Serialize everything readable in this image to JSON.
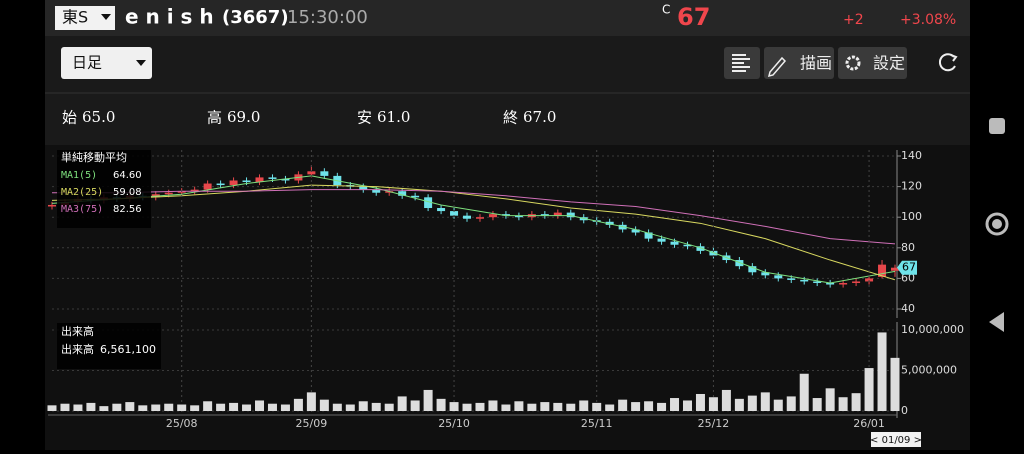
{
  "header": {
    "market": "東S",
    "name": "e n i s h",
    "code": "(3667)",
    "time": "15:30:00",
    "price_flag": "C",
    "price": "67",
    "change": "+2",
    "change_pct": "+3.08%"
  },
  "toolbar": {
    "period": "日足",
    "draw": "描画",
    "settings": "設定"
  },
  "ohlc_summary": [
    {
      "label": "始",
      "value": "65.0"
    },
    {
      "label": "高",
      "value": "69.0"
    },
    {
      "label": "安",
      "value": "61.0"
    },
    {
      "label": "終",
      "value": "67.0"
    }
  ],
  "chart_data": [
    {
      "type": "candlestick",
      "legend_title": "単純移動平均",
      "xlim": [
        0,
        65
      ],
      "ylim": [
        40,
        140
      ],
      "yticks": [
        40,
        60,
        80,
        100,
        120,
        140
      ],
      "up_color": "#e8474b",
      "down_color": "#6fe3ea",
      "last_price_label": "67",
      "ohlc": [
        [
          107,
          110,
          105,
          108
        ],
        [
          108,
          112,
          106,
          110
        ],
        [
          110,
          114,
          108,
          112
        ],
        [
          112,
          114,
          109,
          111
        ],
        [
          111,
          115,
          109,
          113
        ],
        [
          113,
          115,
          110,
          112
        ],
        [
          112,
          116,
          110,
          114
        ],
        [
          114,
          116,
          111,
          113
        ],
        [
          113,
          117,
          111,
          115
        ],
        [
          115,
          118,
          113,
          116
        ],
        [
          116,
          119,
          114,
          117
        ],
        [
          117,
          120,
          115,
          118
        ],
        [
          118,
          124,
          116,
          122
        ],
        [
          122,
          124,
          119,
          121
        ],
        [
          121,
          126,
          119,
          124
        ],
        [
          124,
          126,
          121,
          123
        ],
        [
          123,
          128,
          121,
          126
        ],
        [
          126,
          128,
          123,
          125
        ],
        [
          125,
          127,
          122,
          124
        ],
        [
          124,
          130,
          122,
          128
        ],
        [
          128,
          134,
          126,
          130
        ],
        [
          130,
          132,
          125,
          127
        ],
        [
          127,
          129,
          119,
          121
        ],
        [
          121,
          123,
          118,
          120
        ],
        [
          120,
          122,
          116,
          118
        ],
        [
          118,
          120,
          114,
          116
        ],
        [
          116,
          119,
          114,
          117
        ],
        [
          117,
          119,
          112,
          114
        ],
        [
          114,
          116,
          111,
          113
        ],
        [
          113,
          115,
          104,
          106
        ],
        [
          106,
          108,
          102,
          104
        ],
        [
          104,
          106,
          99,
          101
        ],
        [
          101,
          103,
          97,
          99
        ],
        [
          99,
          102,
          97,
          100
        ],
        [
          100,
          104,
          98,
          102
        ],
        [
          102,
          104,
          99,
          101
        ],
        [
          101,
          103,
          98,
          100
        ],
        [
          100,
          104,
          98,
          102
        ],
        [
          102,
          104,
          99,
          101
        ],
        [
          101,
          105,
          99,
          103
        ],
        [
          103,
          105,
          98,
          100
        ],
        [
          100,
          102,
          96,
          98
        ],
        [
          98,
          100,
          95,
          97
        ],
        [
          97,
          99,
          93,
          95
        ],
        [
          95,
          97,
          90,
          92
        ],
        [
          92,
          94,
          88,
          90
        ],
        [
          90,
          92,
          84,
          86
        ],
        [
          86,
          88,
          82,
          84
        ],
        [
          84,
          86,
          80,
          82
        ],
        [
          82,
          84,
          79,
          81
        ],
        [
          81,
          83,
          76,
          78
        ],
        [
          78,
          80,
          73,
          75
        ],
        [
          75,
          77,
          70,
          72
        ],
        [
          72,
          74,
          66,
          68
        ],
        [
          68,
          70,
          62,
          64
        ],
        [
          64,
          66,
          60,
          62
        ],
        [
          62,
          64,
          58,
          60
        ],
        [
          60,
          62,
          57,
          59
        ],
        [
          59,
          61,
          56,
          58
        ],
        [
          58,
          60,
          55,
          57
        ],
        [
          57,
          59,
          54,
          56
        ],
        [
          56,
          59,
          54,
          57
        ],
        [
          57,
          60,
          55,
          58
        ],
        [
          58,
          62,
          56,
          60
        ],
        [
          61,
          72,
          60,
          69
        ],
        [
          65,
          69,
          61,
          67
        ]
      ],
      "series": [
        {
          "name": "MA1(5)",
          "color": "#7ee07e",
          "current_label": "64.60",
          "x": [
            0,
            5,
            10,
            15,
            20,
            25,
            30,
            35,
            40,
            45,
            50,
            55,
            60,
            65
          ],
          "values": [
            109,
            112,
            115,
            122,
            127,
            119,
            108,
            101,
            101,
            92,
            80,
            64,
            57,
            64.6
          ]
        },
        {
          "name": "MA2(25)",
          "color": "#d8d860",
          "current_label": "59.08",
          "x": [
            0,
            5,
            10,
            15,
            20,
            25,
            30,
            35,
            40,
            45,
            50,
            55,
            60,
            65
          ],
          "values": [
            111,
            112,
            114,
            117,
            121,
            120,
            117,
            112,
            106,
            102,
            96,
            86,
            72,
            59.08
          ]
        },
        {
          "name": "MA3(75)",
          "color": "#d070b8",
          "current_label": "82.56",
          "x": [
            0,
            5,
            10,
            15,
            20,
            25,
            30,
            35,
            40,
            45,
            50,
            55,
            60,
            65
          ],
          "values": [
            116,
            116,
            117,
            117,
            118,
            118,
            117,
            114,
            110,
            107,
            101,
            94,
            86,
            82.56
          ]
        }
      ]
    },
    {
      "type": "bar",
      "legend_title": "出来高",
      "xlim": [
        0,
        65
      ],
      "ylim": [
        0,
        10000000
      ],
      "yticks": [
        0,
        {
          "value": 5000000,
          "label": "5,000,000"
        },
        {
          "value": 10000000,
          "label": "10,000,000"
        }
      ],
      "xticks": [
        {
          "value": 10,
          "label": "25/08"
        },
        {
          "value": 20,
          "label": "25/09"
        },
        {
          "value": 31,
          "label": "25/10"
        },
        {
          "value": 42,
          "label": "25/11"
        },
        {
          "value": 51,
          "label": "25/12"
        },
        {
          "value": 63,
          "label": "26/01"
        }
      ],
      "cursor_label": "< 01/09 >",
      "series": [
        {
          "name": "出来高",
          "color": "#dddddd",
          "current_label": "6,561,100",
          "values": [
            700000,
            900000,
            800000,
            1000000,
            600000,
            900000,
            1100000,
            700000,
            800000,
            900000,
            800000,
            700000,
            1200000,
            900000,
            1000000,
            800000,
            1300000,
            900000,
            800000,
            1500000,
            2300000,
            1400000,
            900000,
            800000,
            1200000,
            1000000,
            900000,
            1800000,
            1300000,
            2600000,
            1500000,
            1100000,
            900000,
            1000000,
            1300000,
            800000,
            1200000,
            900000,
            1100000,
            1000000,
            900000,
            1300000,
            1000000,
            800000,
            1400000,
            1100000,
            1200000,
            1000000,
            1600000,
            1300000,
            2100000,
            1700000,
            2600000,
            1500000,
            1900000,
            2300000,
            1400000,
            1800000,
            4600000,
            1600000,
            2800000,
            1700000,
            2200000,
            5300000,
            9700000,
            6561100
          ]
        }
      ]
    }
  ]
}
